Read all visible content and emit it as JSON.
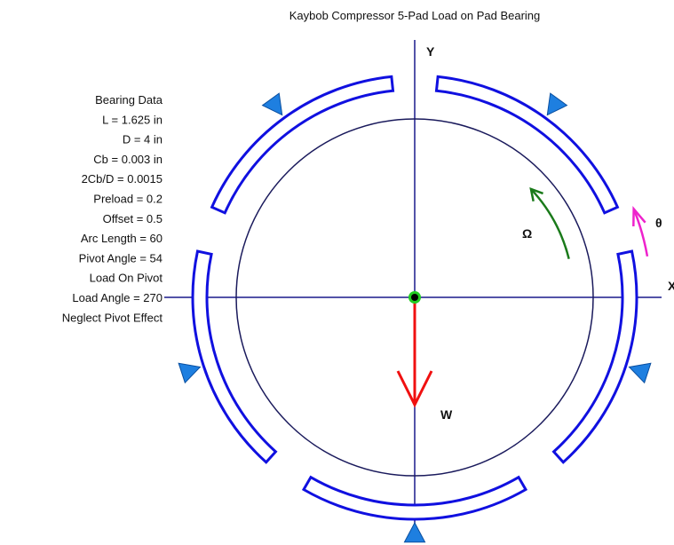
{
  "title": "Kaybob Compressor 5-Pad Load on Pad Bearing",
  "bearing_data": [
    "Bearing Data",
    "L = 1.625 in",
    "D = 4 in",
    "Cb = 0.003 in",
    "2Cb/D = 0.0015",
    "Preload = 0.2",
    "Offset = 0.5",
    "Arc Length = 60",
    "Pivot Angle = 54",
    "Load On Pivot",
    "Load Angle = 270",
    "Neglect Pivot Effect"
  ],
  "axis_labels": {
    "y": "Y",
    "x": "X"
  },
  "symbols": {
    "theta": "θ",
    "omega": "Ω",
    "load": "W"
  }
}
